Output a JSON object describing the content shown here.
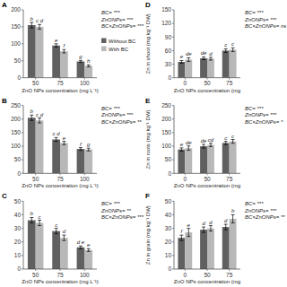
{
  "chart_data": [
    {
      "type": "bar",
      "title": "A",
      "x_label": "ZnO NPs concentration (mg L⁻¹)",
      "categories": [
        "50",
        "75",
        "100"
      ],
      "ylim": [
        0,
        200
      ],
      "yticks": [
        0,
        50,
        100,
        150,
        200
      ],
      "series": [
        {
          "name": "Without BC",
          "color": "#606060",
          "values": [
            155,
            95,
            48
          ],
          "errors": [
            8,
            5,
            3
          ],
          "letters": [
            "b",
            "e",
            "g"
          ]
        },
        {
          "name": "With BC",
          "color": "#b8b8b8",
          "values": [
            150,
            78,
            35
          ],
          "errors": [
            7,
            5,
            3
          ],
          "letters": [
            "c d",
            "f",
            "h"
          ]
        }
      ],
      "annotations": [
        "BC= ***",
        "ZnONPs= ***",
        "BC×ZnONPs= ***"
      ],
      "legend": "right"
    },
    {
      "type": "bar",
      "title": "D",
      "x_label": "ZnO NPs concentration (mg",
      "y_label": "Zn in shoot (mg kg⁻¹ DW)",
      "categories": [
        "0",
        "50",
        "75"
      ],
      "ylim": [
        0,
        150
      ],
      "yticks": [
        0,
        30,
        60,
        90,
        120,
        150
      ],
      "series": [
        {
          "color": "#606060",
          "values": [
            35,
            43,
            60
          ],
          "errors": [
            3,
            3,
            4
          ],
          "letters": [
            "e",
            "de",
            "c"
          ]
        },
        {
          "color": "#b8b8b8",
          "values": [
            40,
            42,
            62
          ],
          "errors": [
            4,
            3,
            4
          ],
          "letters": [
            "de",
            "d",
            "c"
          ]
        }
      ],
      "annotations": [
        "BC= ***",
        "ZnONPs= ***",
        "BC×ZnONPs= ns"
      ]
    },
    {
      "type": "bar",
      "title": "B",
      "x_label": "ZnO NPs concentration (mg L⁻¹)",
      "categories": [
        "50",
        "75",
        "100"
      ],
      "ylim": [
        0,
        250
      ],
      "yticks": [
        0,
        50,
        100,
        150,
        200,
        250
      ],
      "series": [
        {
          "color": "#606060",
          "values": [
            205,
            125,
            90
          ],
          "errors": [
            10,
            7,
            5
          ],
          "letters": [
            "b",
            "c d",
            "f"
          ]
        },
        {
          "color": "#b8b8b8",
          "values": [
            195,
            112,
            88
          ],
          "errors": [
            9,
            6,
            5
          ],
          "letters": [
            "c d",
            "e",
            "g"
          ]
        }
      ],
      "annotations": [
        "BC= ***",
        "ZnONPs= ***",
        "BC×ZnONPs= **"
      ]
    },
    {
      "type": "bar",
      "title": "E",
      "x_label": "ZnO NPs concentration (mg",
      "y_label": "Zn in roots (mg kg⁻¹ DW)",
      "categories": [
        "0",
        "50",
        "75"
      ],
      "ylim": [
        0,
        250
      ],
      "yticks": [
        0,
        50,
        100,
        150,
        200,
        250
      ],
      "series": [
        {
          "color": "#606060",
          "values": [
            88,
            100,
            112
          ],
          "errors": [
            6,
            7,
            6
          ],
          "letters": [
            "e",
            "de",
            "c"
          ]
        },
        {
          "color": "#b8b8b8",
          "values": [
            93,
            105,
            118
          ],
          "errors": [
            8,
            6,
            7
          ],
          "letters": [
            "de",
            "cd",
            "c"
          ]
        }
      ],
      "annotations": [
        "BC= ***",
        "ZnONPs= ***",
        "BC×ZnONPs= *"
      ]
    },
    {
      "type": "bar",
      "title": "C",
      "x_label": "ZnO NPs concentration (mg L⁻¹)",
      "categories": [
        "50",
        "75",
        "100"
      ],
      "ylim": [
        0,
        50
      ],
      "yticks": [
        0,
        10,
        20,
        30,
        40,
        50
      ],
      "series": [
        {
          "color": "#606060",
          "values": [
            36,
            28,
            16
          ],
          "errors": [
            2,
            2,
            1
          ],
          "letters": [
            "b",
            "c",
            "d e"
          ]
        },
        {
          "color": "#b8b8b8",
          "values": [
            34,
            23,
            14
          ],
          "errors": [
            2,
            2,
            1
          ],
          "letters": [
            "c",
            "d",
            "e"
          ]
        }
      ],
      "annotations": [
        "BC= ***",
        "ZnONPs= **",
        "BC×ZnONPs= ***"
      ]
    },
    {
      "type": "bar",
      "title": "F",
      "x_label": "ZnO NPs concentration (mg",
      "y_label": "Zn in grain (mg kg⁻¹ DW)",
      "categories": [
        "0",
        "50",
        "75"
      ],
      "ylim": [
        0,
        50
      ],
      "yticks": [
        0,
        10,
        20,
        30,
        40,
        50
      ],
      "series": [
        {
          "color": "#606060",
          "values": [
            23,
            29,
            31
          ],
          "errors": [
            2,
            2,
            2
          ],
          "letters": [
            "f",
            "d",
            "d"
          ]
        },
        {
          "color": "#b8b8b8",
          "values": [
            27,
            30,
            37
          ],
          "errors": [
            3,
            2,
            3
          ],
          "letters": [
            "e",
            "d",
            "b"
          ]
        }
      ],
      "annotations": [
        "BC= ***",
        "ZnONPs= ***",
        "BC×ZnONPs= **"
      ]
    }
  ]
}
